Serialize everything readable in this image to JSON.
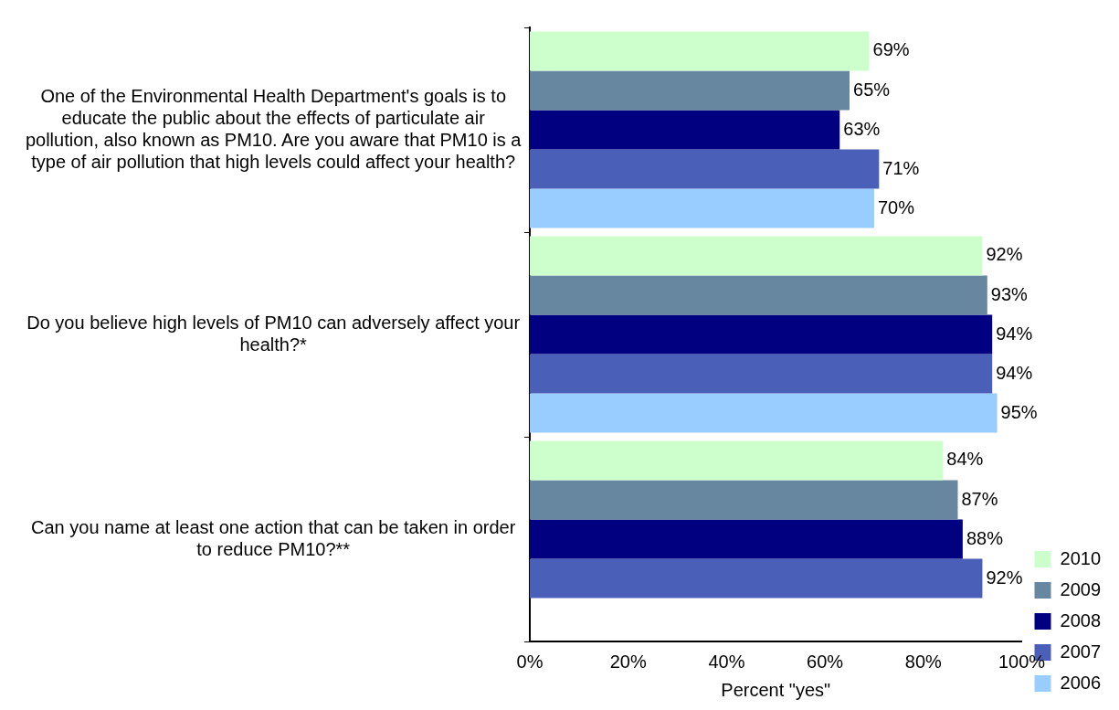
{
  "chart_data": {
    "type": "bar",
    "orientation": "horizontal",
    "xlabel": "Percent \"yes\"",
    "categories": [
      "One of the Environmental Health Department's goals is to educate the public about the effects of particulate air pollution, also known as PM10. Are you aware that PM10 is a type of air pollution that high levels could affect your health?",
      "Do you believe high levels of PM10 can adversely affect your health?*",
      "Can you name at least one action that can be taken in order to reduce PM10?**"
    ],
    "series": [
      {
        "name": "2010",
        "color": "#ccffcc",
        "values": [
          69,
          92,
          84
        ],
        "value_labels": [
          "69%",
          "92%",
          "84%"
        ]
      },
      {
        "name": "2009",
        "color": "#66879f",
        "values": [
          65,
          93,
          87
        ],
        "value_labels": [
          "65%",
          "93%",
          "87%"
        ]
      },
      {
        "name": "2008",
        "color": "#000080",
        "values": [
          63,
          94,
          88
        ],
        "value_labels": [
          "63%",
          "94%",
          "88%"
        ]
      },
      {
        "name": "2007",
        "color": "#4a5fb8",
        "values": [
          71,
          94,
          92
        ],
        "value_labels": [
          "71%",
          "94%",
          "92%"
        ]
      },
      {
        "name": "2006",
        "color": "#99ccff",
        "values": [
          70,
          95,
          null
        ],
        "value_labels": [
          "70%",
          "95%",
          null
        ]
      }
    ],
    "xlim": [
      0,
      100
    ],
    "xticks": [
      {
        "value": 0,
        "label": "0%"
      },
      {
        "value": 20,
        "label": "20%"
      },
      {
        "value": 40,
        "label": "40%"
      },
      {
        "value": 60,
        "label": "60%"
      },
      {
        "value": 80,
        "label": "80%"
      },
      {
        "value": 100,
        "label": "100%"
      }
    ],
    "grid": false,
    "legend": "right"
  }
}
